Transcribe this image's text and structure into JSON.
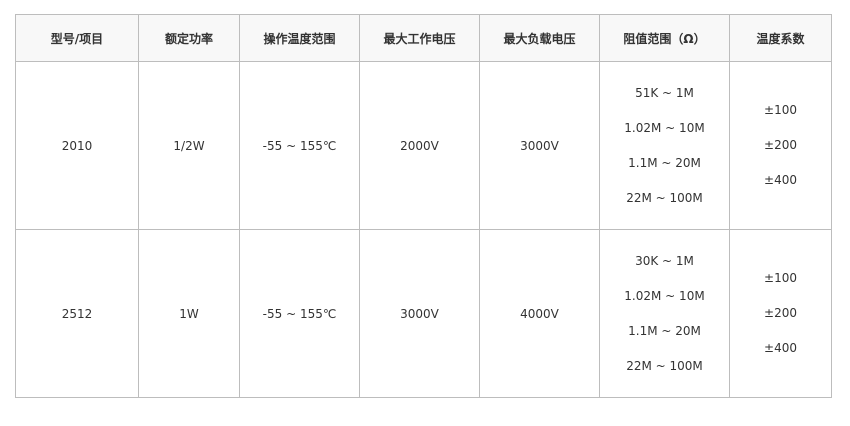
{
  "headers": [
    "型号/项目",
    "额定功率",
    "操作温度范围",
    "最大工作电压",
    "最大负载电压",
    "阻值范围（Ω）",
    "温度系数"
  ],
  "rows": [
    {
      "model": "2010",
      "power": "1/2W",
      "temp_range": "-55 ~ 155℃",
      "max_work_voltage": "2000V",
      "max_load_voltage": "3000V",
      "resistance": [
        "51K ~ 1M",
        "1.02M ~ 10M",
        "1.1M ~ 20M",
        "22M ~ 100M"
      ],
      "tcr": [
        "±100",
        "±200",
        "±400"
      ]
    },
    {
      "model": "2512",
      "power": "1W",
      "temp_range": "-55 ~ 155℃",
      "max_work_voltage": "3000V",
      "max_load_voltage": "4000V",
      "resistance": [
        "30K ~ 1M",
        "1.02M ~ 10M",
        "1.1M ~ 20M",
        "22M ~ 100M"
      ],
      "tcr": [
        "±100",
        "±200",
        "±400"
      ]
    }
  ]
}
